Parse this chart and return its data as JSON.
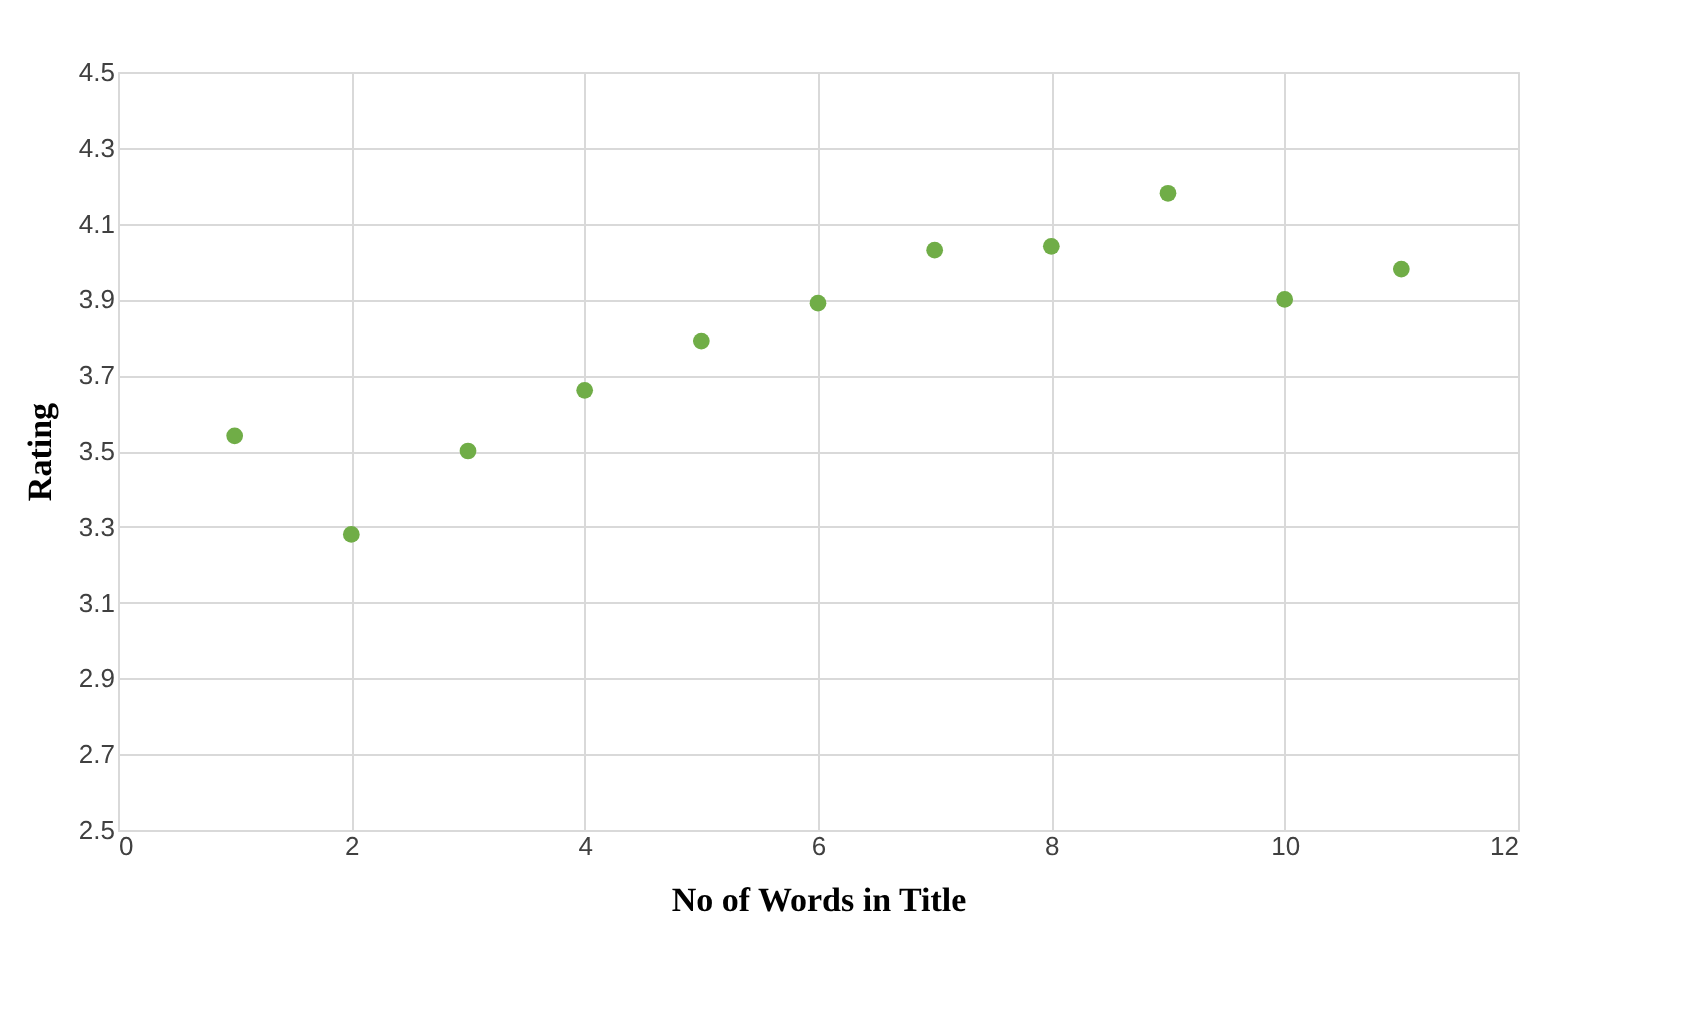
{
  "chart_data": {
    "type": "scatter",
    "xlabel": "No of Words in Title",
    "ylabel": "Rating",
    "x": [
      1,
      2,
      3,
      4,
      5,
      6,
      7,
      8,
      9,
      10,
      11
    ],
    "series": [
      {
        "color": "#70ad47",
        "values": [
          3.54,
          3.28,
          3.5,
          3.66,
          3.79,
          3.89,
          4.03,
          4.04,
          4.18,
          3.9,
          3.98
        ]
      }
    ],
    "xlim": [
      0,
      12
    ],
    "xticks": [
      0,
      2,
      4,
      6,
      8,
      10,
      12
    ],
    "ylim": [
      2.5,
      4.5
    ],
    "yticks": [
      {
        "value": 2.5,
        "label": "2.5"
      },
      {
        "value": 2.7,
        "label": "2.7"
      },
      {
        "value": 2.9,
        "label": "2.9"
      },
      {
        "value": 3.1,
        "label": "3.1"
      },
      {
        "value": 3.3,
        "label": "3.3"
      },
      {
        "value": 3.5,
        "label": "3.5"
      },
      {
        "value": 3.7,
        "label": "3.7"
      },
      {
        "value": 3.9,
        "label": "3.9"
      },
      {
        "value": 4.1,
        "label": "4.1"
      },
      {
        "value": 4.3,
        "label": "4.3"
      },
      {
        "value": 4.5,
        "label": "4.5"
      }
    ],
    "grid": true,
    "marker": "circle"
  }
}
